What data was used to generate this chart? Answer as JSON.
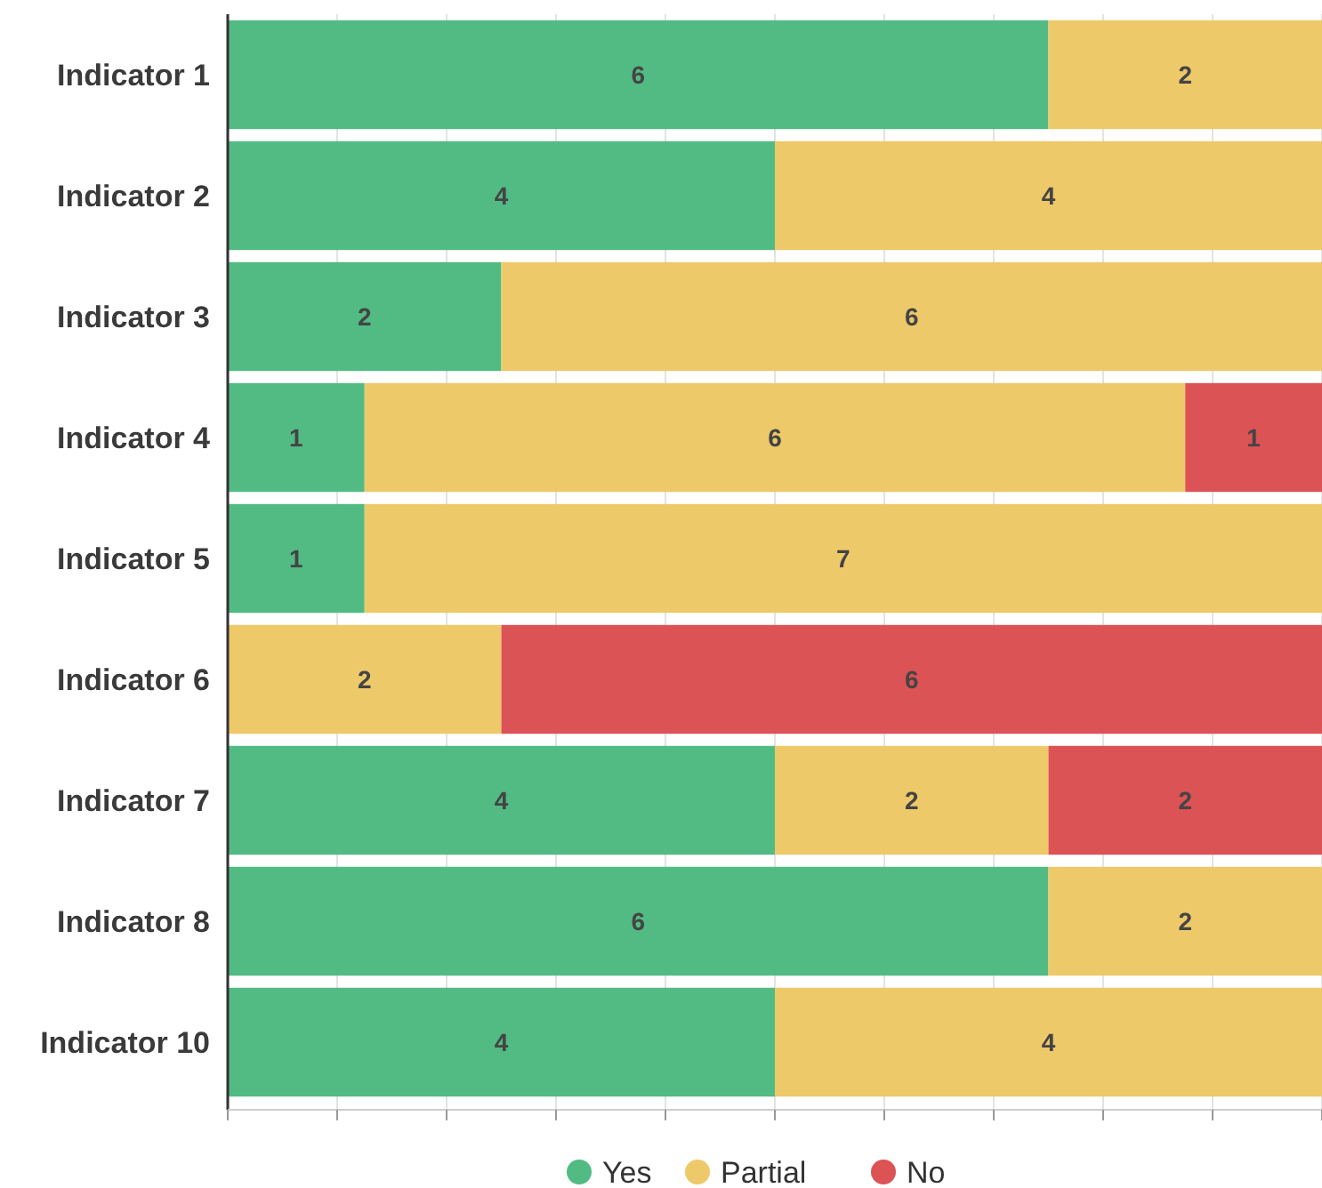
{
  "chart_data": {
    "type": "bar",
    "orientation": "horizontal",
    "stacked": true,
    "data_labels": true,
    "grid": "x",
    "legend": "bottom",
    "tick_labels": "y",
    "categories": [
      "Indicator 1",
      "Indicator 2",
      "Indicator 3",
      "Indicator 4",
      "Indicator 5",
      "Indicator 6",
      "Indicator 7",
      "Indicator 8",
      "Indicator 10"
    ],
    "xlim": [
      0,
      8
    ],
    "xticks": [
      {
        "value": 0,
        "label": null
      },
      {
        "value": 0.8,
        "label": null
      },
      {
        "value": 1.6,
        "label": null
      },
      {
        "value": 2.4,
        "label": null
      },
      {
        "value": 3.2,
        "label": null
      },
      {
        "value": 4,
        "label": null
      },
      {
        "value": 4.8,
        "label": null
      },
      {
        "value": 5.6,
        "label": null
      },
      {
        "value": 6.4,
        "label": null
      },
      {
        "value": 7.2,
        "label": null
      },
      {
        "value": 8,
        "label": null
      }
    ],
    "series": [
      {
        "name": "Yes",
        "color": "#52bb84",
        "values": [
          6,
          4,
          2,
          1,
          1,
          null,
          4,
          6,
          4
        ]
      },
      {
        "name": "Partial",
        "color": "#eec96a",
        "values": [
          2,
          4,
          6,
          6,
          7,
          2,
          2,
          2,
          4
        ]
      },
      {
        "name": "No",
        "color": "#dc5355",
        "values": [
          null,
          null,
          null,
          1,
          null,
          6,
          2,
          null,
          null
        ]
      }
    ]
  }
}
